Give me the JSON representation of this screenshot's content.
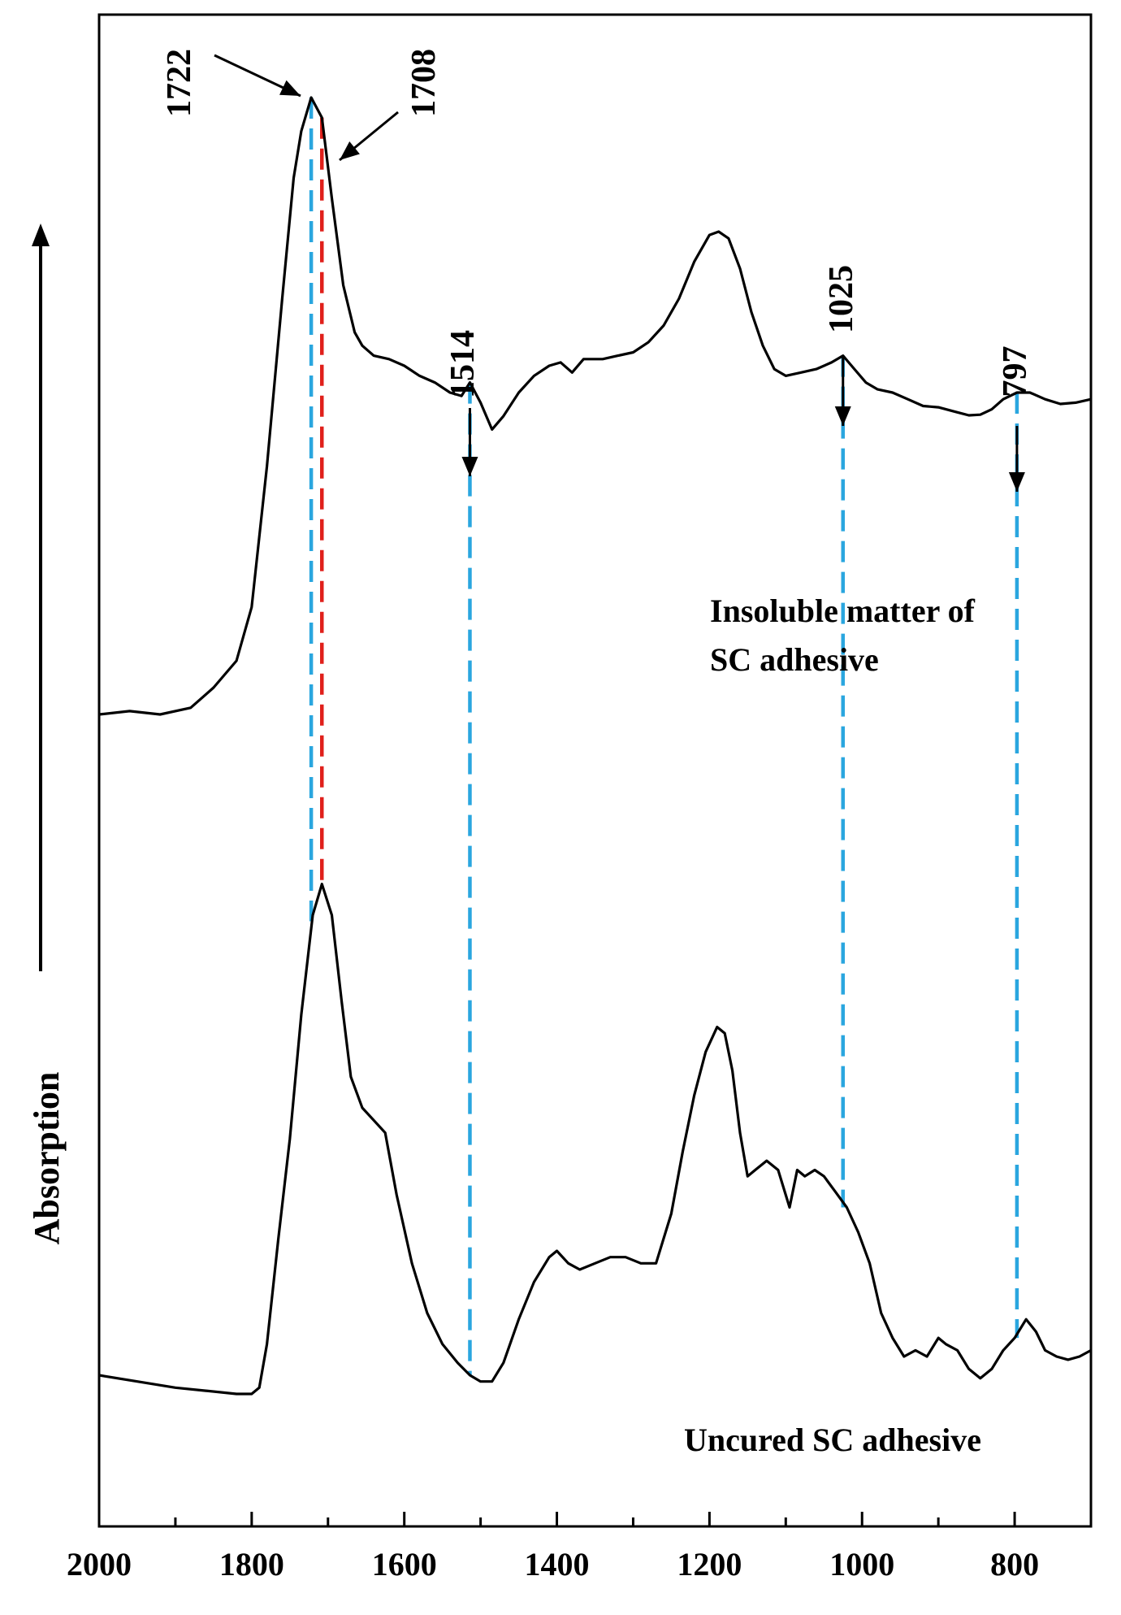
{
  "chart_data": {
    "type": "line",
    "title": "",
    "xlabel": "",
    "ylabel": "Absorption",
    "xlim": [
      2000,
      700
    ],
    "x_reversed": true,
    "x_ticks": [
      2000,
      1800,
      1600,
      1400,
      1200,
      1000,
      800
    ],
    "y_ticks_shown": false,
    "grid": false,
    "series": [
      {
        "name": "Insoluble matter of SC adhesive",
        "color": "#000000",
        "points": [
          [
            2000,
            0.08
          ],
          [
            1960,
            0.085
          ],
          [
            1920,
            0.08
          ],
          [
            1880,
            0.09
          ],
          [
            1850,
            0.12
          ],
          [
            1820,
            0.16
          ],
          [
            1800,
            0.24
          ],
          [
            1780,
            0.45
          ],
          [
            1760,
            0.7
          ],
          [
            1745,
            0.88
          ],
          [
            1735,
            0.95
          ],
          [
            1722,
            1.0
          ],
          [
            1708,
            0.97
          ],
          [
            1695,
            0.85
          ],
          [
            1680,
            0.72
          ],
          [
            1665,
            0.65
          ],
          [
            1655,
            0.63
          ],
          [
            1640,
            0.615
          ],
          [
            1620,
            0.61
          ],
          [
            1600,
            0.6
          ],
          [
            1580,
            0.585
          ],
          [
            1560,
            0.575
          ],
          [
            1540,
            0.56
          ],
          [
            1525,
            0.555
          ],
          [
            1514,
            0.575
          ],
          [
            1500,
            0.545
          ],
          [
            1485,
            0.505
          ],
          [
            1470,
            0.525
          ],
          [
            1450,
            0.56
          ],
          [
            1430,
            0.585
          ],
          [
            1410,
            0.6
          ],
          [
            1395,
            0.605
          ],
          [
            1380,
            0.59
          ],
          [
            1365,
            0.61
          ],
          [
            1340,
            0.61
          ],
          [
            1320,
            0.615
          ],
          [
            1300,
            0.62
          ],
          [
            1280,
            0.635
          ],
          [
            1260,
            0.66
          ],
          [
            1240,
            0.7
          ],
          [
            1220,
            0.755
          ],
          [
            1200,
            0.795
          ],
          [
            1188,
            0.8
          ],
          [
            1175,
            0.79
          ],
          [
            1160,
            0.745
          ],
          [
            1145,
            0.68
          ],
          [
            1130,
            0.63
          ],
          [
            1115,
            0.595
          ],
          [
            1100,
            0.585
          ],
          [
            1080,
            0.59
          ],
          [
            1060,
            0.595
          ],
          [
            1040,
            0.605
          ],
          [
            1025,
            0.615
          ],
          [
            1010,
            0.595
          ],
          [
            995,
            0.575
          ],
          [
            980,
            0.565
          ],
          [
            960,
            0.56
          ],
          [
            940,
            0.55
          ],
          [
            920,
            0.54
          ],
          [
            900,
            0.538
          ],
          [
            880,
            0.532
          ],
          [
            860,
            0.526
          ],
          [
            845,
            0.527
          ],
          [
            830,
            0.535
          ],
          [
            815,
            0.55
          ],
          [
            797,
            0.56
          ],
          [
            780,
            0.56
          ],
          [
            760,
            0.55
          ],
          [
            740,
            0.543
          ],
          [
            720,
            0.545
          ],
          [
            700,
            0.55
          ]
        ]
      },
      {
        "name": "Uncured SC adhesive",
        "color": "#000000",
        "points": [
          [
            2000,
            0.0
          ],
          [
            1950,
            -0.01
          ],
          [
            1900,
            -0.02
          ],
          [
            1860,
            -0.025
          ],
          [
            1820,
            -0.03
          ],
          [
            1800,
            -0.03
          ],
          [
            1790,
            -0.02
          ],
          [
            1780,
            0.05
          ],
          [
            1765,
            0.22
          ],
          [
            1750,
            0.38
          ],
          [
            1735,
            0.58
          ],
          [
            1720,
            0.74
          ],
          [
            1708,
            0.79
          ],
          [
            1695,
            0.74
          ],
          [
            1682,
            0.6
          ],
          [
            1670,
            0.48
          ],
          [
            1655,
            0.43
          ],
          [
            1640,
            0.41
          ],
          [
            1625,
            0.39
          ],
          [
            1610,
            0.29
          ],
          [
            1590,
            0.18
          ],
          [
            1570,
            0.1
          ],
          [
            1550,
            0.05
          ],
          [
            1530,
            0.02
          ],
          [
            1514,
            0.0
          ],
          [
            1500,
            -0.01
          ],
          [
            1485,
            -0.01
          ],
          [
            1470,
            0.02
          ],
          [
            1450,
            0.09
          ],
          [
            1430,
            0.15
          ],
          [
            1410,
            0.19
          ],
          [
            1400,
            0.2
          ],
          [
            1385,
            0.18
          ],
          [
            1370,
            0.17
          ],
          [
            1350,
            0.18
          ],
          [
            1330,
            0.19
          ],
          [
            1310,
            0.19
          ],
          [
            1290,
            0.18
          ],
          [
            1270,
            0.18
          ],
          [
            1250,
            0.26
          ],
          [
            1235,
            0.36
          ],
          [
            1220,
            0.45
          ],
          [
            1205,
            0.52
          ],
          [
            1190,
            0.56
          ],
          [
            1180,
            0.55
          ],
          [
            1170,
            0.49
          ],
          [
            1160,
            0.39
          ],
          [
            1150,
            0.32
          ],
          [
            1140,
            0.33
          ],
          [
            1125,
            0.345
          ],
          [
            1110,
            0.33
          ],
          [
            1095,
            0.27
          ],
          [
            1085,
            0.33
          ],
          [
            1075,
            0.32
          ],
          [
            1062,
            0.33
          ],
          [
            1050,
            0.32
          ],
          [
            1035,
            0.295
          ],
          [
            1020,
            0.27
          ],
          [
            1005,
            0.23
          ],
          [
            990,
            0.18
          ],
          [
            975,
            0.1
          ],
          [
            960,
            0.06
          ],
          [
            945,
            0.03
          ],
          [
            930,
            0.04
          ],
          [
            915,
            0.03
          ],
          [
            900,
            0.06
          ],
          [
            890,
            0.05
          ],
          [
            875,
            0.04
          ],
          [
            860,
            0.01
          ],
          [
            845,
            -0.005
          ],
          [
            830,
            0.01
          ],
          [
            815,
            0.04
          ],
          [
            800,
            0.06
          ],
          [
            785,
            0.09
          ],
          [
            772,
            0.07
          ],
          [
            760,
            0.04
          ],
          [
            745,
            0.03
          ],
          [
            730,
            0.025
          ],
          [
            715,
            0.03
          ],
          [
            700,
            0.04
          ]
        ]
      }
    ],
    "reference_lines": [
      {
        "x": 1722,
        "color": "#2aa6df",
        "style": "dashed",
        "from": 1.0,
        "to": 0.73
      },
      {
        "x": 1708,
        "color": "#e0201b",
        "style": "dashed",
        "from": 0.97,
        "to": 0.79
      },
      {
        "x": 1514,
        "color": "#2aa6df",
        "style": "dashed",
        "from": 0.575,
        "to": 0.0
      },
      {
        "x": 1025,
        "color": "#2aa6df",
        "style": "dashed",
        "from": 0.615,
        "to": 0.27
      },
      {
        "x": 797,
        "color": "#2aa6df",
        "style": "dashed",
        "from": 0.56,
        "to": 0.06
      }
    ],
    "annotations": [
      {
        "text": "1722",
        "x": 1722
      },
      {
        "text": "1708",
        "x": 1708
      },
      {
        "text": "1514",
        "x": 1514
      },
      {
        "text": "1025",
        "x": 1025
      },
      {
        "text": "797",
        "x": 797
      }
    ],
    "series_labels": [
      "Insoluble matter of",
      "SC adhesive",
      "Uncured SC adhesive"
    ]
  }
}
